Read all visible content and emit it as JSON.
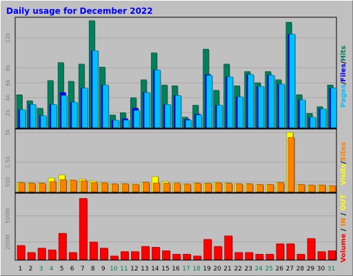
{
  "title": "Daily usage for December 2022",
  "colors": {
    "background": "#c0c0c0",
    "title": "#0000ff",
    "hits": "#00805c",
    "files": "#0000ff",
    "pages": "#00c0ff",
    "visits": "#ffff00",
    "sites": "#ff8000",
    "volume": "#ff0000",
    "in": "#ff8000",
    "out": "#ffff00",
    "weekday_label": "#000000",
    "weekend_label": "#00805c"
  },
  "chart_data": [
    {
      "type": "bar",
      "name": "hits-files-pages",
      "legend": [
        "Pages",
        "Files",
        "Hits"
      ],
      "legend_separator": "/",
      "y_tick_labels": [
        "2k",
        "4k",
        "6k",
        "8k",
        "12k"
      ],
      "y_ticks": [
        2000,
        4000,
        6000,
        8000,
        12000
      ],
      "ylim": [
        0,
        14300
      ],
      "grid": true,
      "series": [
        {
          "name": "Hits",
          "values": [
            4400,
            3600,
            2600,
            6300,
            8700,
            6200,
            8500,
            14300,
            8100,
            1700,
            2000,
            4000,
            6400,
            10000,
            5700,
            5600,
            1400,
            3000,
            10500,
            5000,
            8500,
            5600,
            7500,
            6000,
            7500,
            6400,
            14100,
            4400,
            1900,
            2800,
            5700
          ]
        },
        {
          "name": "Files",
          "values": [
            2400,
            3100,
            1600,
            3100,
            4700,
            3400,
            5300,
            10300,
            5700,
            1000,
            1200,
            2600,
            4700,
            7700,
            3100,
            4300,
            1100,
            1800,
            7100,
            3000,
            6800,
            4100,
            7100,
            5500,
            7000,
            5800,
            12500,
            3700,
            1400,
            2500,
            5300
          ]
        },
        {
          "name": "Pages",
          "values": [
            2400,
            3100,
            1600,
            3100,
            4300,
            3400,
            5300,
            10300,
            5700,
            1000,
            1000,
            2300,
            4700,
            7700,
            3100,
            4300,
            1000,
            1700,
            7000,
            3000,
            6800,
            4100,
            7100,
            5500,
            7000,
            5800,
            12500,
            3700,
            1400,
            2500,
            5300
          ]
        }
      ]
    },
    {
      "type": "bar",
      "name": "visits-sites",
      "legend": [
        "Visits",
        "Sites"
      ],
      "legend_separator": "/",
      "y_tick_labels": [
        "500",
        "1.5k",
        "3k"
      ],
      "y_ticks": [
        500,
        1500,
        3000
      ],
      "ylim": [
        0,
        3000
      ],
      "grid": true,
      "series": [
        {
          "name": "Visits",
          "values": [
            480,
            450,
            450,
            700,
            850,
            600,
            640,
            550,
            470,
            410,
            420,
            390,
            500,
            770,
            520,
            460,
            400,
            450,
            440,
            480,
            450,
            420,
            420,
            380,
            380,
            480,
            3000,
            380,
            350,
            350,
            310
          ]
        },
        {
          "name": "Sites",
          "values": [
            460,
            430,
            430,
            520,
            620,
            580,
            560,
            470,
            450,
            400,
            410,
            380,
            480,
            450,
            440,
            430,
            390,
            430,
            430,
            450,
            430,
            400,
            400,
            370,
            370,
            460,
            2750,
            370,
            340,
            340,
            300
          ]
        }
      ]
    },
    {
      "type": "bar",
      "name": "volume",
      "legend": [
        "Volume",
        "IN",
        "OUT"
      ],
      "legend_separator": " / ",
      "y_tick_labels": [
        "200M",
        "500M"
      ],
      "y_ticks": [
        200,
        500
      ],
      "ylim": [
        0,
        720
      ],
      "grid": true,
      "series": [
        {
          "name": "Volume",
          "values": [
            160,
            80,
            130,
            110,
            300,
            80,
            700,
            200,
            130,
            40,
            90,
            90,
            150,
            140,
            100,
            60,
            60,
            40,
            230,
            150,
            270,
            80,
            80,
            60,
            60,
            180,
            180,
            60,
            240,
            90,
            100
          ]
        }
      ]
    }
  ],
  "x_categories": [
    "1",
    "2",
    "3",
    "4",
    "5",
    "6",
    "7",
    "8",
    "9",
    "10",
    "11",
    "12",
    "13",
    "14",
    "15",
    "16",
    "17",
    "18",
    "19",
    "20",
    "21",
    "22",
    "23",
    "24",
    "25",
    "26",
    "27",
    "28",
    "29",
    "30",
    "31"
  ],
  "weekend_days": [
    "3",
    "4",
    "10",
    "11",
    "17",
    "18",
    "24",
    "25",
    "31"
  ]
}
